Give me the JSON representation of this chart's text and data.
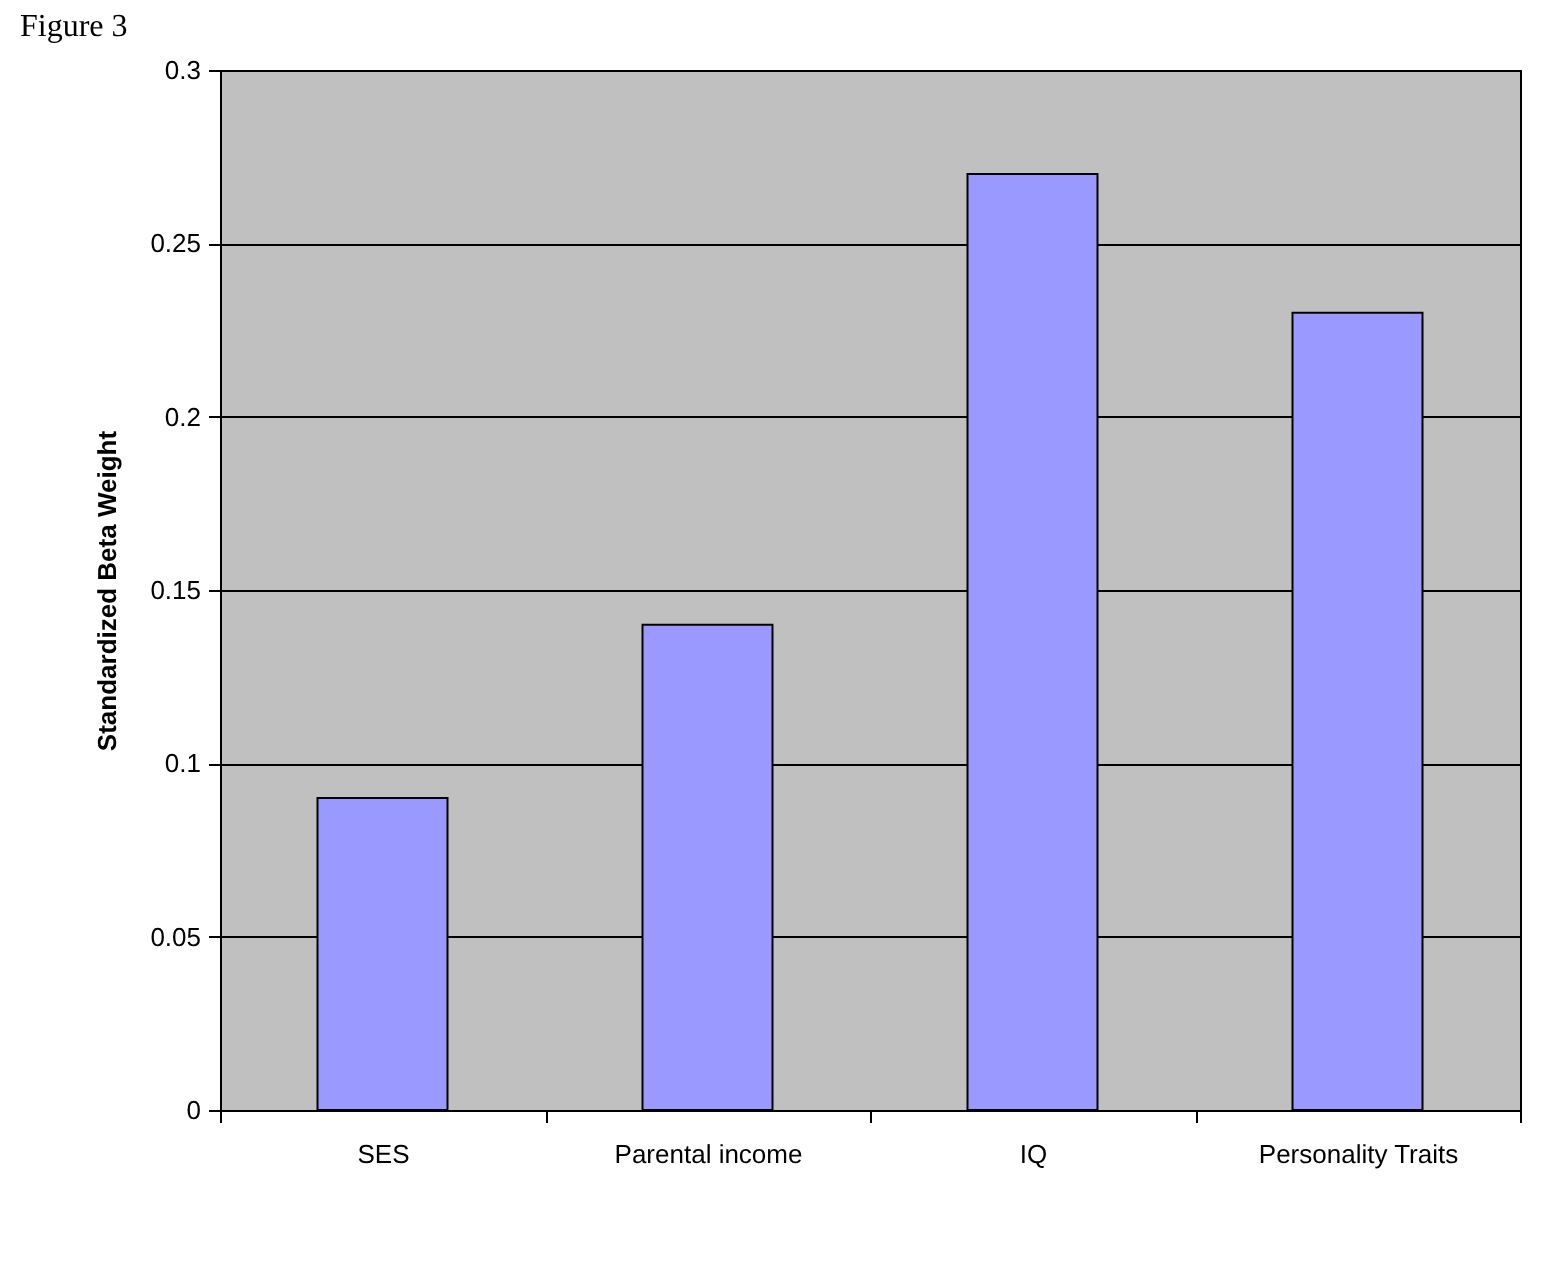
{
  "chart_data": {
    "type": "bar",
    "title": "Figure 3",
    "ylabel": "Standardized Beta Weight",
    "categories": [
      "SES",
      "Parental income",
      "IQ",
      "Personality Traits"
    ],
    "values": [
      0.09,
      0.14,
      0.27,
      0.23
    ],
    "color": "#9999ff",
    "ylim": [
      0,
      0.3
    ],
    "yticks": [
      0,
      0.05,
      0.1,
      0.15,
      0.2,
      0.25,
      0.3
    ],
    "grid": "y"
  }
}
